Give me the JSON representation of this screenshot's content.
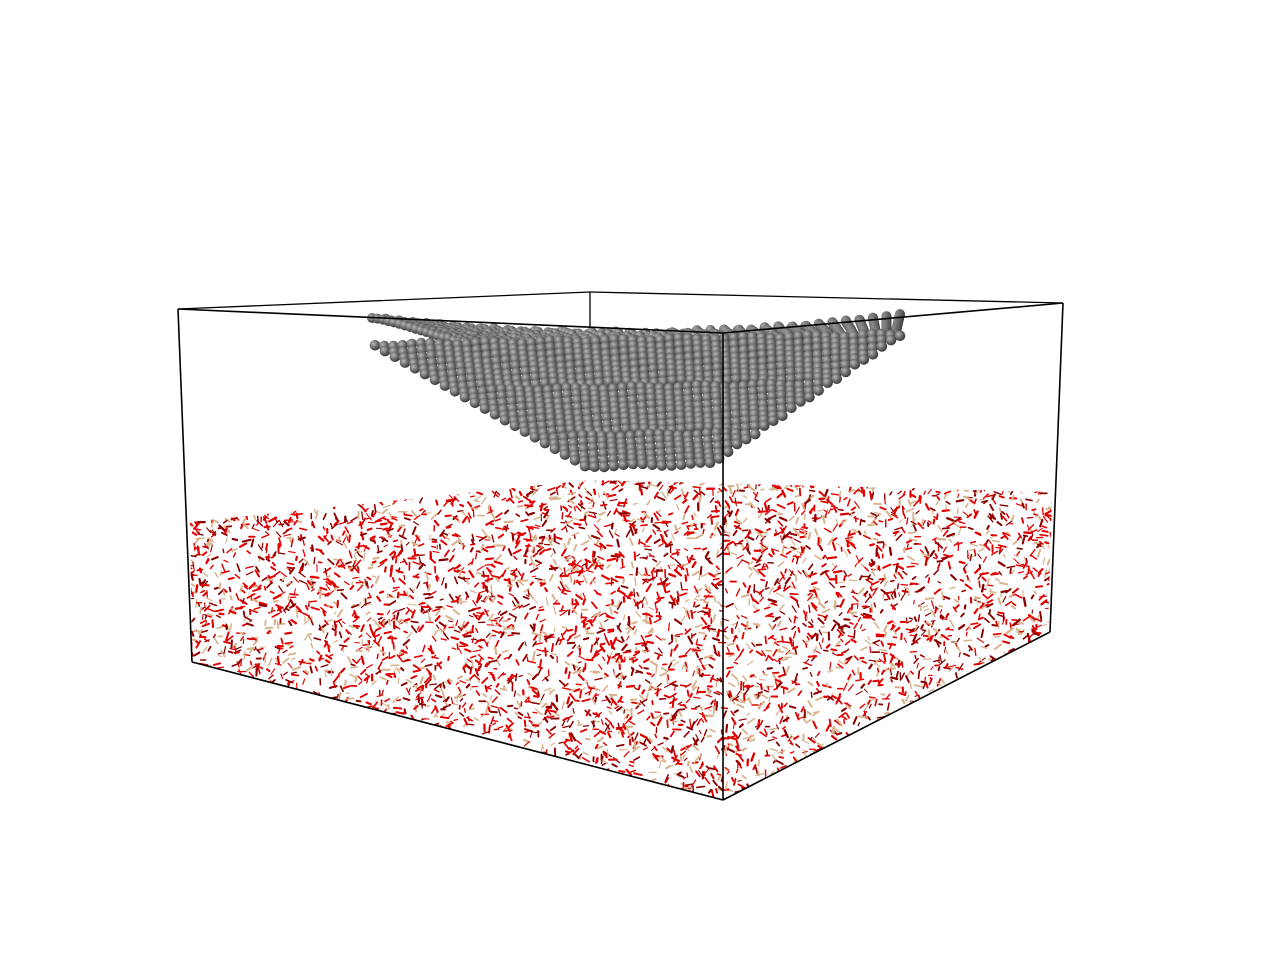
{
  "scene": {
    "background": "#ffffff",
    "box_color": "#000000",
    "tip_color": "#6e6e6e",
    "tip_highlight": "#a8a8a8",
    "substrate_colors": {
      "oxygen": "#e00000",
      "silicon": "#d8b48e",
      "dark_oxygen": "#8a0000"
    }
  }
}
